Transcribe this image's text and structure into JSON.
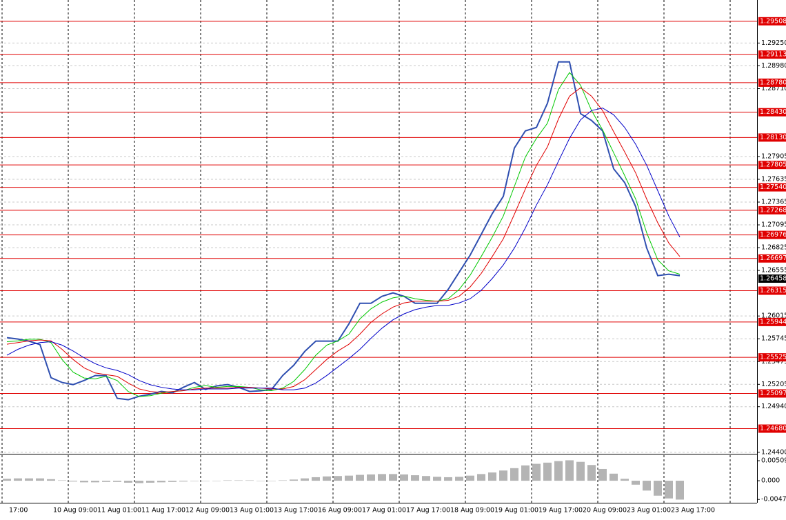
{
  "chart_data": [
    {
      "type": "line",
      "categories": [
        "17:00",
        null,
        null,
        null,
        "10 Aug 09:00",
        null,
        null,
        null,
        "11 Aug 01:00",
        null,
        null,
        null,
        "11 Aug 17:00",
        null,
        null,
        null,
        "12 Aug 09:00",
        null,
        null,
        null,
        "13 Aug 01:00",
        null,
        null,
        null,
        "13 Aug 17:00",
        null,
        null,
        null,
        "16 Aug 09:00",
        null,
        null,
        null,
        "17 Aug 01:00",
        null,
        null,
        null,
        "17 Aug 17:00",
        null,
        null,
        null,
        "18 Aug 09:00",
        null,
        null,
        null,
        "19 Aug 01:00",
        null,
        null,
        null,
        "19 Aug 17:00",
        null,
        null,
        null,
        "20 Aug 09:00",
        null,
        null,
        null,
        "23 Aug 01:00",
        null,
        null,
        null,
        "23 Aug 17:00",
        null
      ],
      "series": [
        {
          "color": "#2f4fb0",
          "width": 2,
          "values": [
            1.25758,
            1.25742,
            1.25717,
            1.25676,
            1.25284,
            1.25227,
            1.25202,
            1.25251,
            1.25309,
            1.25309,
            1.25039,
            1.25023,
            1.25064,
            1.25088,
            1.25121,
            1.25104,
            1.2517,
            1.25227,
            1.25145,
            1.25186,
            1.25202,
            1.2517,
            1.25121,
            1.25129,
            1.25145,
            1.25309,
            1.25431,
            1.25595,
            1.25717,
            1.25717,
            1.25717,
            1.25921,
            1.26166,
            1.26166,
            1.26248,
            1.26289,
            1.26248,
            1.26166,
            1.26166,
            1.26166,
            1.2633,
            1.26534,
            1.26738,
            1.26983,
            1.27229,
            1.27433,
            1.28005,
            1.28209,
            1.2825,
            1.28536,
            1.29026,
            1.29026,
            1.28413,
            1.28332,
            1.28209,
            1.2776,
            1.27596,
            1.2731,
            1.2682,
            1.26493,
            1.2651,
            1.26493
          ]
        },
        {
          "color": "#00c800",
          "width": 1,
          "values": [
            1.2571,
            1.2572,
            1.2574,
            1.2574,
            1.257,
            1.255,
            1.2535,
            1.2528,
            1.2527,
            1.253,
            1.2525,
            1.2512,
            1.2506,
            1.2507,
            1.251,
            1.2512,
            1.2513,
            1.2517,
            1.2519,
            1.2517,
            1.2518,
            1.2518,
            1.2517,
            1.2514,
            1.2513,
            1.2516,
            1.2524,
            1.2538,
            1.2555,
            1.2567,
            1.2572,
            1.258,
            1.2598,
            1.261,
            1.2618,
            1.2623,
            1.2625,
            1.2622,
            1.262,
            1.2619,
            1.2622,
            1.2633,
            1.265,
            1.2672,
            1.2695,
            1.272,
            1.2755,
            1.279,
            1.2812,
            1.283,
            1.287,
            1.289,
            1.2875,
            1.2845,
            1.2822,
            1.2795,
            1.2768,
            1.274,
            1.27,
            1.2668,
            1.2655,
            1.2651
          ]
        },
        {
          "color": "#e00000",
          "width": 1,
          "values": [
            1.2568,
            1.257,
            1.2572,
            1.2573,
            1.2572,
            1.2562,
            1.255,
            1.254,
            1.2534,
            1.2532,
            1.253,
            1.2522,
            1.2515,
            1.2512,
            1.2511,
            1.2512,
            1.2513,
            1.2515,
            1.2516,
            1.2516,
            1.2516,
            1.2517,
            1.2517,
            1.2516,
            1.2515,
            1.2515,
            1.2518,
            1.2526,
            1.2538,
            1.255,
            1.256,
            1.2568,
            1.258,
            1.2594,
            1.2604,
            1.2612,
            1.2617,
            1.2619,
            1.2619,
            1.2619,
            1.262,
            1.2625,
            1.2636,
            1.2652,
            1.2672,
            1.2693,
            1.2722,
            1.2752,
            1.278,
            1.2802,
            1.2835,
            1.2862,
            1.2872,
            1.2862,
            1.2845,
            1.282,
            1.2796,
            1.2771,
            1.274,
            1.2712,
            1.2688,
            1.2672
          ]
        },
        {
          "color": "#0000c8",
          "width": 1,
          "values": [
            1.2555,
            1.2562,
            1.2567,
            1.257,
            1.2571,
            1.2567,
            1.256,
            1.2552,
            1.2545,
            1.254,
            1.2537,
            1.2532,
            1.2525,
            1.252,
            1.2517,
            1.2515,
            1.2514,
            1.2514,
            1.2515,
            1.2515,
            1.2515,
            1.2516,
            1.2516,
            1.2516,
            1.2516,
            1.2514,
            1.2514,
            1.2516,
            1.2522,
            1.2531,
            1.2541,
            1.2551,
            1.2562,
            1.2575,
            1.2587,
            1.2597,
            1.2604,
            1.2609,
            1.2612,
            1.2614,
            1.2614,
            1.2617,
            1.2622,
            1.2632,
            1.2646,
            1.2662,
            1.2682,
            1.2706,
            1.2733,
            1.2757,
            1.2785,
            1.2812,
            1.2834,
            1.2845,
            1.2848,
            1.284,
            1.2825,
            1.2805,
            1.278,
            1.275,
            1.272,
            1.2695
          ]
        }
      ],
      "ylim": [
        1.2439,
        1.2976
      ],
      "yticks": [
        {
          "value": 1.2925,
          "label": "1.29250"
        },
        {
          "value": 1.2898,
          "label": "1.28980"
        },
        {
          "value": 1.2871,
          "label": "1.28710"
        },
        {
          "value": 1.27905,
          "label": "1.27905"
        },
        {
          "value": 1.27635,
          "label": "1.27635"
        },
        {
          "value": 1.27365,
          "label": "1.27365"
        },
        {
          "value": 1.27095,
          "label": "1.27095"
        },
        {
          "value": 1.26825,
          "label": "1.26825"
        },
        {
          "value": 1.26555,
          "label": "1.26555"
        },
        {
          "value": 1.26015,
          "label": "1.26015"
        },
        {
          "value": 1.25745,
          "label": "1.25745"
        },
        {
          "value": 1.25475,
          "label": "1.25475"
        },
        {
          "value": 1.25205,
          "label": "1.25205"
        },
        {
          "value": 1.2494,
          "label": "1.24940"
        },
        {
          "value": 1.244,
          "label": "1.24400"
        }
      ],
      "levels": [
        {
          "value": 1.29508,
          "label": "1.29508"
        },
        {
          "value": 1.29113,
          "label": "1.29113"
        },
        {
          "value": 1.2878,
          "label": "1.28780"
        },
        {
          "value": 1.2843,
          "label": "1.28430"
        },
        {
          "value": 1.2813,
          "label": "1.28130"
        },
        {
          "value": 1.27805,
          "label": "1.27805"
        },
        {
          "value": 1.2754,
          "label": "1.27540"
        },
        {
          "value": 1.27268,
          "label": "1.27268"
        },
        {
          "value": 1.26976,
          "label": "1.26976"
        },
        {
          "value": 1.26697,
          "label": "1.26697"
        },
        {
          "value": 1.26315,
          "label": "1.26315"
        },
        {
          "value": 1.25944,
          "label": "1.25944"
        },
        {
          "value": 1.25525,
          "label": "1.25525"
        },
        {
          "value": 1.25097,
          "label": "1.25097"
        },
        {
          "value": 1.2468,
          "label": "1.24680"
        }
      ],
      "level_color": "#e00000",
      "current_price": 1.26458,
      "grid": true
    },
    {
      "type": "bar",
      "color": "#b4b4b4",
      "values": [
        0.0005,
        0.0006,
        0.0006,
        0.0006,
        0.0004,
        0.0001,
        -0.0002,
        -0.0004,
        -0.0004,
        -0.0003,
        -0.0003,
        -0.0005,
        -0.0006,
        -0.0005,
        -0.0004,
        -0.0003,
        -0.0002,
        -0.0001,
        0,
        0,
        0.0001,
        0.0001,
        0.0001,
        0,
        0,
        0.0001,
        0.0003,
        0.0006,
        0.0009,
        0.0011,
        0.0012,
        0.0013,
        0.0015,
        0.0016,
        0.0017,
        0.0017,
        0.0016,
        0.0014,
        0.0012,
        0.001,
        0.0009,
        0.001,
        0.0013,
        0.0017,
        0.0021,
        0.0026,
        0.0032,
        0.0039,
        0.0043,
        0.0046,
        0.005,
        0.0052,
        0.0048,
        0.004,
        0.003,
        0.0018,
        0.0005,
        -0.001,
        -0.0025,
        -0.0038,
        -0.0045,
        -0.0048
      ],
      "ylim": [
        -0.0056,
        0.0065
      ],
      "yticks": [
        0.00509,
        {
          "value": 0,
          "label": "0.000"
        },
        -0.00476
      ]
    }
  ]
}
